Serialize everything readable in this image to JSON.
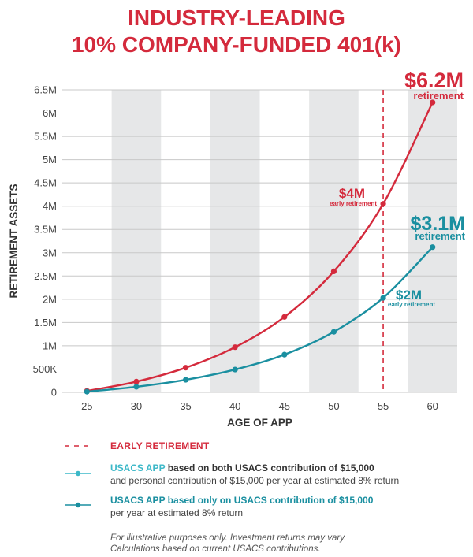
{
  "title": {
    "line1": "INDUSTRY-LEADING",
    "line2": "10% COMPANY-FUNDED 401(k)"
  },
  "colors": {
    "red": "#d42a3c",
    "teal_dark": "#1a8fa0",
    "teal_light": "#3cb8c8",
    "band": "#e6e7e8",
    "grid": "#c8c8c8",
    "axis_text": "#444444"
  },
  "chart_data": {
    "type": "line",
    "title": "INDUSTRY-LEADING 10% COMPANY-FUNDED 401(k)",
    "xlabel": "AGE OF APP",
    "ylabel": "RETIREMENT ASSETS",
    "x": [
      25,
      30,
      35,
      40,
      45,
      50,
      55,
      60
    ],
    "xlim": [
      22.5,
      62.5
    ],
    "ylim": [
      0,
      6500000
    ],
    "x_ticks": [
      "25",
      "30",
      "35",
      "40",
      "45",
      "50",
      "55",
      "60"
    ],
    "y_ticks": [
      {
        "value": 0,
        "label": "0"
      },
      {
        "value": 500000,
        "label": "500K"
      },
      {
        "value": 1000000,
        "label": "1M"
      },
      {
        "value": 1500000,
        "label": "1.5M"
      },
      {
        "value": 2000000,
        "label": "2M"
      },
      {
        "value": 2500000,
        "label": "2.5M"
      },
      {
        "value": 3000000,
        "label": "3M"
      },
      {
        "value": 3500000,
        "label": "3.5M"
      },
      {
        "value": 4000000,
        "label": "4M"
      },
      {
        "value": 4500000,
        "label": "4.5M"
      },
      {
        "value": 5000000,
        "label": "5M"
      },
      {
        "value": 5500000,
        "label": "5.5M"
      },
      {
        "value": 6000000,
        "label": "6M"
      },
      {
        "value": 6500000,
        "label": "6.5M"
      }
    ],
    "shaded_bands": [
      [
        27.5,
        32.5
      ],
      [
        37.5,
        42.5
      ],
      [
        47.5,
        52.5
      ],
      [
        57.5,
        62.5
      ]
    ],
    "early_retirement_age": 55,
    "series": [
      {
        "name": "USACS APP based on both USACS contribution of $15,000 and personal contribution of $15,000 per year at estimated 8% return",
        "color": "#d42a3c",
        "values": [
          30000,
          230000,
          530000,
          970000,
          1620000,
          2600000,
          4050000,
          6230000
        ]
      },
      {
        "name": "USACS APP based only on USACS contribution of $15,000 per year at estimated 8% return",
        "color": "#1a8fa0",
        "values": [
          15000,
          120000,
          270000,
          490000,
          810000,
          1300000,
          2030000,
          3120000
        ]
      }
    ],
    "annotations": [
      {
        "id": "red_final",
        "big": "$6.2M",
        "small": "retirement",
        "color": "#d42a3c"
      },
      {
        "id": "red_early",
        "big": "$4M",
        "small": "early retirement",
        "color": "#d42a3c"
      },
      {
        "id": "teal_final",
        "big": "$3.1M",
        "small": "retirement",
        "color": "#1a8fa0"
      },
      {
        "id": "teal_early",
        "big": "$2M",
        "small": "early retirement",
        "color": "#1a8fa0"
      }
    ]
  },
  "legend": {
    "early_retirement": "EARLY RETIREMENT",
    "item1_bold": "USACS APP",
    "item1_rest_a": " based on both USACS contribution of $15,000",
    "item1_rest_b": "and personal contribution of $15,000 per year at estimated 8% return",
    "item2_bold": "USACS APP based only on USACS contribution of $15,000",
    "item2_rest": "per year at estimated 8% return"
  },
  "note": {
    "line1": "For illustrative purposes only. Investment returns may vary.",
    "line2": "Calculations based on current USACS contributions."
  }
}
